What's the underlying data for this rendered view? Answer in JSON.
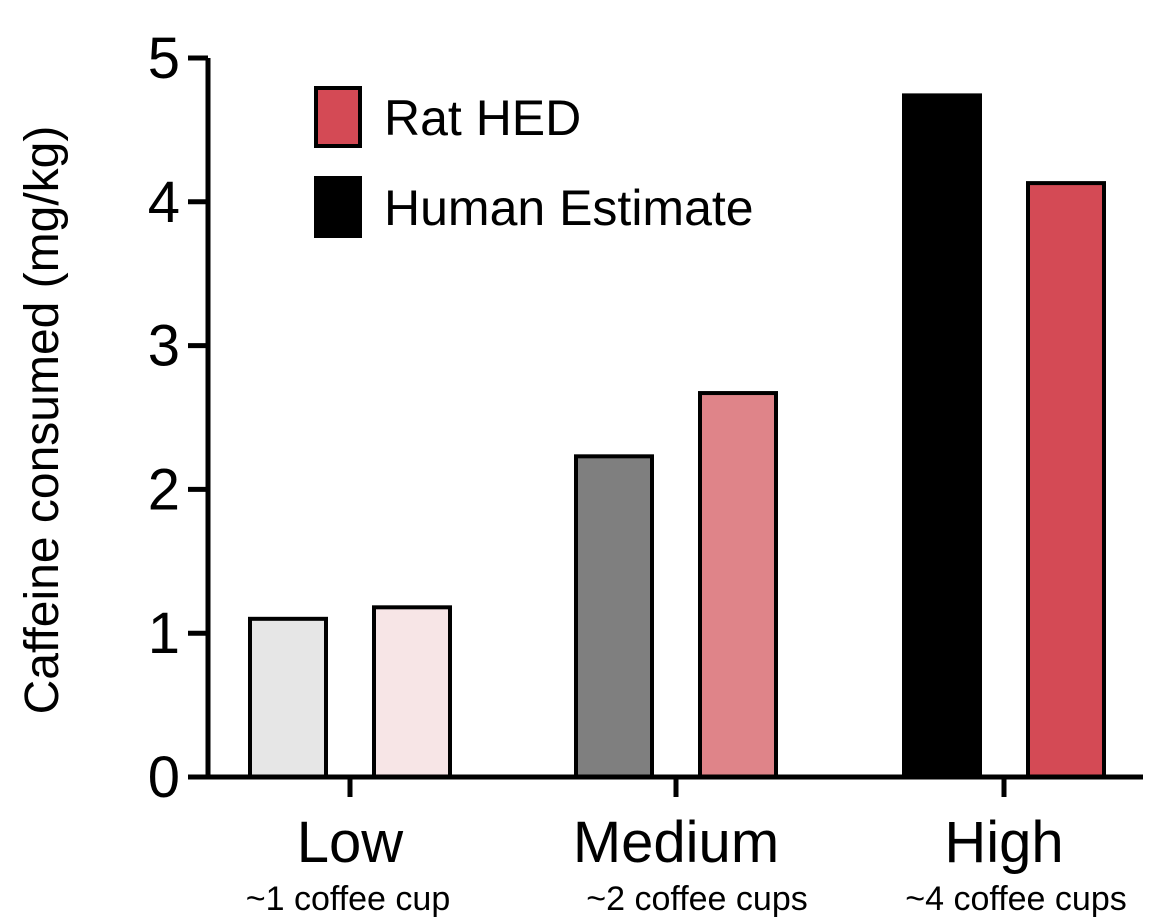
{
  "chart_data": {
    "type": "bar",
    "title": "",
    "xlabel": "",
    "ylabel": "Caffeine consumed (mg/kg)",
    "ylim": [
      0,
      5
    ],
    "yticks": [
      "0",
      "1",
      "2",
      "3",
      "4",
      "5"
    ],
    "grid": false,
    "legend_placement": "top-left",
    "categories": [
      {
        "label": "Low",
        "sublabel": "~1 coffee cup"
      },
      {
        "label": "Medium",
        "sublabel": "~2 coffee cups"
      },
      {
        "label": "High",
        "sublabel": "~4 coffee cups"
      }
    ],
    "bars": [
      {
        "category": "Low",
        "series": "Human Estimate",
        "value": 1.1,
        "color": "#e6e6e6"
      },
      {
        "category": "Low",
        "series": "Rat HED",
        "value": 1.18,
        "color": "#f7e5e6"
      },
      {
        "category": "Medium",
        "series": "Human Estimate",
        "value": 2.23,
        "color": "#7f7f7f"
      },
      {
        "category": "Medium",
        "series": "Rat HED",
        "value": 2.67,
        "color": "#df8489"
      },
      {
        "category": "High",
        "series": "Human Estimate",
        "value": 4.74,
        "color": "#000000"
      },
      {
        "category": "High",
        "series": "Rat HED",
        "value": 4.13,
        "color": "#d44a55"
      }
    ],
    "legend": [
      {
        "name": "Rat HED",
        "color": "#d44a55"
      },
      {
        "name": "Human Estimate",
        "color": "#000000"
      }
    ]
  }
}
